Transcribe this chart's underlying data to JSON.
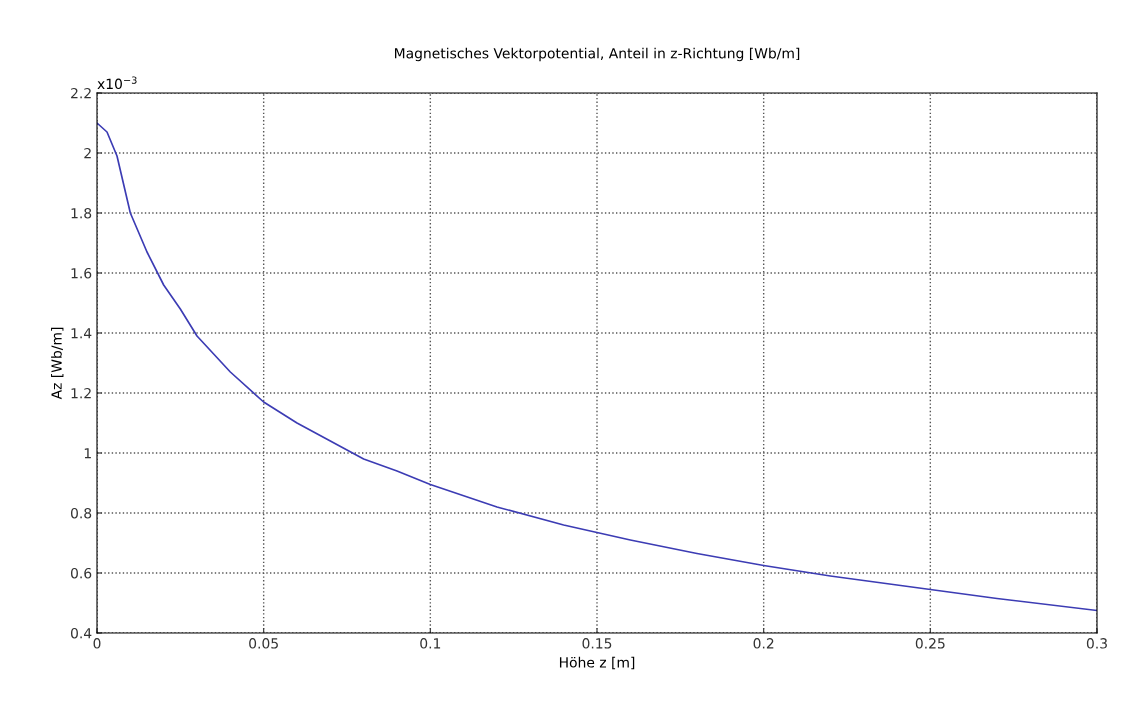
{
  "chart_data": {
    "type": "line",
    "title": "Magnetisches Vektorpotential, Anteil in z-Richtung [Wb/m]",
    "xlabel": "Höhe z [m]",
    "ylabel": "Az [Wb/m]",
    "annotations": [
      "x10$^{−3}$"
    ],
    "x": [
      0,
      0.003,
      0.006,
      0.01,
      0.015,
      0.02,
      0.025,
      0.03,
      0.04,
      0.05,
      0.06,
      0.07,
      0.08,
      0.09,
      0.1,
      0.12,
      0.14,
      0.15,
      0.16,
      0.18,
      0.2,
      0.22,
      0.24,
      0.25,
      0.27,
      0.3
    ],
    "series": [
      {
        "color": "#3c3cb4",
        "values": [
          2.1,
          2.07,
          1.99,
          1.8,
          1.67,
          1.56,
          1.48,
          1.39,
          1.27,
          1.17,
          1.1,
          1.04,
          0.98,
          0.94,
          0.895,
          0.82,
          0.76,
          0.735,
          0.71,
          0.665,
          0.625,
          0.59,
          0.56,
          0.545,
          0.515,
          0.475
        ]
      }
    ],
    "xlim": [
      0,
      0.3
    ],
    "xticks": [
      0,
      0.05,
      0.1,
      0.15,
      0.2,
      0.25,
      0.3
    ],
    "ylim": [
      0.4,
      2.2
    ],
    "yticks": [
      0.4,
      0.6,
      0.8,
      1,
      1.2,
      1.4,
      1.6,
      1.8,
      2,
      2.2
    ],
    "grid": true,
    "line_style": "solid"
  }
}
